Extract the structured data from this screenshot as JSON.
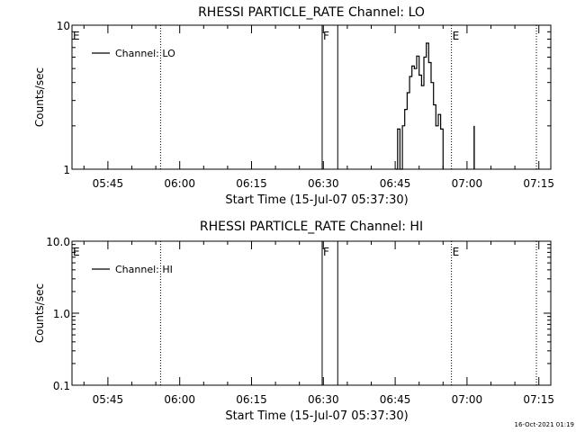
{
  "footer": {
    "date_stamp": "16-Oct-2021 01:19"
  },
  "chart_data": [
    {
      "type": "line",
      "title": "RHESSI PARTICLE_RATE Channel: LO",
      "xlabel": "Start Time (15-Jul-07 05:37:30)",
      "ylabel": "Counts/sec",
      "yscale": "log",
      "ylim": [
        1,
        10
      ],
      "y_tick_labels": [
        "1",
        "10"
      ],
      "x_time_range": [
        "05:37:30",
        "07:17:30"
      ],
      "x_tick_labels": [
        "05:45",
        "06:00",
        "06:15",
        "06:30",
        "06:45",
        "07:00",
        "07:15"
      ],
      "legend": "top-left",
      "series": [
        {
          "name": "Channel: LO",
          "points": [
            [
              "06:45:10",
              1.0
            ],
            [
              "06:45:30",
              1.9
            ],
            [
              "06:46:00",
              1.0
            ],
            [
              "06:46:30",
              2.0
            ],
            [
              "06:47:00",
              2.6
            ],
            [
              "06:47:30",
              3.4
            ],
            [
              "06:48:00",
              4.4
            ],
            [
              "06:48:30",
              5.2
            ],
            [
              "06:49:00",
              5.0
            ],
            [
              "06:49:30",
              6.1
            ],
            [
              "06:50:00",
              4.5
            ],
            [
              "06:50:30",
              3.8
            ],
            [
              "06:51:00",
              6.0
            ],
            [
              "06:51:30",
              7.5
            ],
            [
              "06:52:00",
              5.5
            ],
            [
              "06:52:30",
              4.0
            ],
            [
              "06:53:00",
              2.8
            ],
            [
              "06:53:30",
              2.0
            ],
            [
              "06:54:00",
              2.4
            ],
            [
              "06:54:30",
              1.9
            ],
            [
              "06:55:00",
              1.0
            ]
          ],
          "spikes": [
            [
              "07:01:30",
              2.0
            ]
          ]
        }
      ],
      "flag_lines": [
        {
          "label": "E",
          "time": "05:37:30",
          "style": "dotted"
        },
        {
          "label": "",
          "time": "05:56:00",
          "style": "dotted"
        },
        {
          "label": "F",
          "time": "06:29:45",
          "style": "solid"
        },
        {
          "label": "",
          "time": "06:33:00",
          "style": "solid"
        },
        {
          "label": "E",
          "time": "06:56:45",
          "style": "dotted"
        },
        {
          "label": "",
          "time": "07:14:30",
          "style": "dotted"
        }
      ]
    },
    {
      "type": "line",
      "title": "RHESSI PARTICLE_RATE Channel: HI",
      "xlabel": "Start Time (15-Jul-07 05:37:30)",
      "ylabel": "Counts/sec",
      "yscale": "log",
      "ylim": [
        0.1,
        10
      ],
      "y_tick_labels": [
        "0.1",
        "1.0",
        "10.0"
      ],
      "x_time_range": [
        "05:37:30",
        "07:17:30"
      ],
      "x_tick_labels": [
        "05:45",
        "06:00",
        "06:15",
        "06:30",
        "06:45",
        "07:00",
        "07:15"
      ],
      "legend": "top-left",
      "series": [
        {
          "name": "Channel: HI",
          "points": []
        }
      ],
      "flag_lines": [
        {
          "label": "E",
          "time": "05:37:30",
          "style": "dotted"
        },
        {
          "label": "",
          "time": "05:56:00",
          "style": "dotted"
        },
        {
          "label": "F",
          "time": "06:29:45",
          "style": "solid"
        },
        {
          "label": "",
          "time": "06:33:00",
          "style": "solid"
        },
        {
          "label": "E",
          "time": "06:56:45",
          "style": "dotted"
        },
        {
          "label": "",
          "time": "07:14:30",
          "style": "dotted"
        }
      ]
    }
  ]
}
